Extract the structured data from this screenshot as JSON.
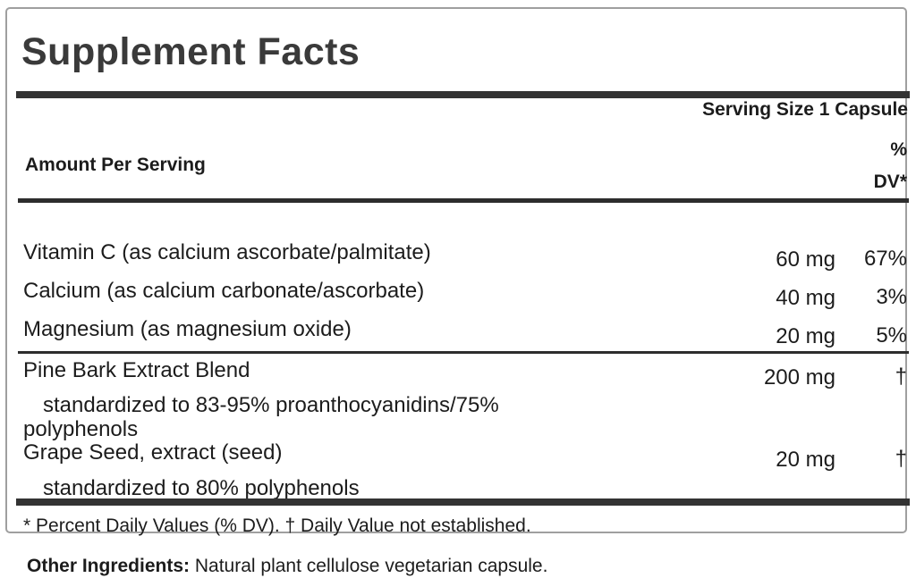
{
  "label": {
    "title": "Supplement Facts",
    "serving_size": "Serving Size 1 Capsule",
    "headers": {
      "amount_per_serving": "Amount Per Serving",
      "dv_line1": "%",
      "dv_line2": "DV*"
    },
    "rows": [
      {
        "name": "Vitamin C (as calcium ascorbate/palmitate)",
        "amount": "60 mg",
        "dv": "67%"
      },
      {
        "name": "Calcium (as calcium carbonate/ascorbate)",
        "amount": "40 mg",
        "dv": "3%"
      },
      {
        "name": "Magnesium (as magnesium oxide)",
        "amount": "20 mg",
        "dv": "5%"
      },
      {
        "name": "Pine Bark Extract Blend",
        "amount": "200 mg",
        "dv": "†",
        "sub_lines": [
          "standardized to 83-95% proanthocyanidins/75%",
          "polyphenols"
        ]
      },
      {
        "name": "Grape Seed, extract (seed)",
        "amount": "20 mg",
        "dv": "†",
        "sub_lines": [
          "standardized to 80% polyphenols"
        ]
      }
    ],
    "footnote": "* Percent Daily Values (% DV). † Daily Value not established.",
    "colors": {
      "bar": "#333333",
      "divider": "#2d2d2d",
      "border": "#9f9f9f",
      "title_text": "#3a3a3a",
      "body_text": "#1c1c1c"
    }
  },
  "other_ingredients": {
    "label": "Other Ingredients:",
    "text": " Natural plant cellulose vegetarian capsule."
  }
}
